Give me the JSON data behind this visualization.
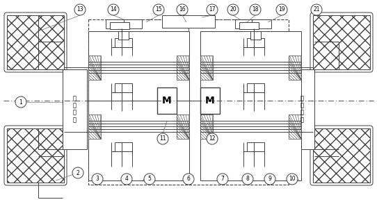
{
  "lc": "#404040",
  "lw": 0.7,
  "figsize": [
    5.42,
    2.91
  ],
  "dpi": 100,
  "circle_labels": [
    [
      "1",
      30,
      147
    ],
    [
      "2",
      112,
      249
    ],
    [
      "3",
      140,
      258
    ],
    [
      "4",
      182,
      258
    ],
    [
      "5",
      215,
      258
    ],
    [
      "6",
      271,
      258
    ],
    [
      "7",
      320,
      258
    ],
    [
      "8",
      356,
      258
    ],
    [
      "9",
      388,
      258
    ],
    [
      "10",
      420,
      258
    ],
    [
      "11",
      234,
      200
    ],
    [
      "12",
      305,
      200
    ],
    [
      "13",
      115,
      14
    ],
    [
      "14",
      163,
      14
    ],
    [
      "15",
      228,
      14
    ],
    [
      "16",
      262,
      14
    ],
    [
      "17",
      305,
      14
    ],
    [
      "18",
      367,
      14
    ],
    [
      "19",
      405,
      14
    ],
    [
      "20",
      335,
      14
    ],
    [
      "21",
      455,
      14
    ]
  ]
}
